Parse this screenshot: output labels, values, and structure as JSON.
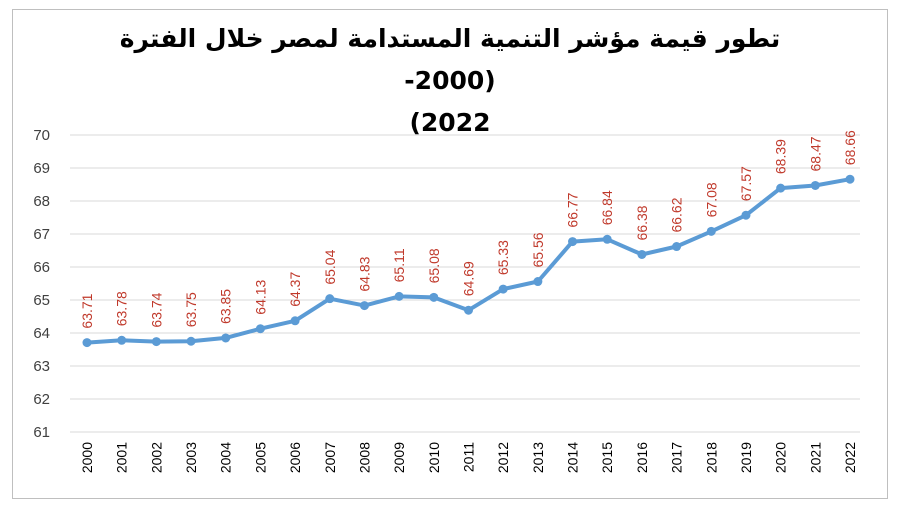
{
  "chart_data": {
    "type": "line",
    "title": "تطور قيمة مؤشر التنمية المستدامة لمصر خلال الفترة (2000-2022)",
    "title_line1": "تطور قيمة مؤشر التنمية المستدامة لمصر خلال الفترة (2000-",
    "title_line2": "(2022",
    "xlabel": "",
    "ylabel": "",
    "ylim": [
      61,
      70
    ],
    "yticks": [
      61,
      62,
      63,
      64,
      65,
      66,
      67,
      68,
      69,
      70
    ],
    "grid": true,
    "categories": [
      "2000",
      "2001",
      "2002",
      "2003",
      "2004",
      "2005",
      "2006",
      "2007",
      "2008",
      "2009",
      "2010",
      "2011",
      "2012",
      "2013",
      "2014",
      "2015",
      "2016",
      "2017",
      "2018",
      "2019",
      "2020",
      "2021",
      "2022"
    ],
    "values": [
      63.71,
      63.78,
      63.74,
      63.75,
      63.85,
      64.13,
      64.37,
      65.04,
      64.83,
      65.11,
      65.08,
      64.69,
      65.33,
      65.56,
      66.77,
      66.84,
      66.38,
      66.62,
      67.08,
      67.57,
      68.39,
      68.47,
      68.66
    ],
    "data_labels": [
      "63.71",
      "63.78",
      "63.74",
      "63.75",
      "63.85",
      "64.13",
      "64.37",
      "65.04",
      "64.83",
      "65.11",
      "65.08",
      "64.69",
      "65.33",
      "65.56",
      "66.77",
      "66.84",
      "66.38",
      "66.62",
      "67.08",
      "67.57",
      "68.39",
      "68.47",
      "68.66"
    ],
    "line_color": "#5b9bd5",
    "label_color": "#c0392b"
  }
}
